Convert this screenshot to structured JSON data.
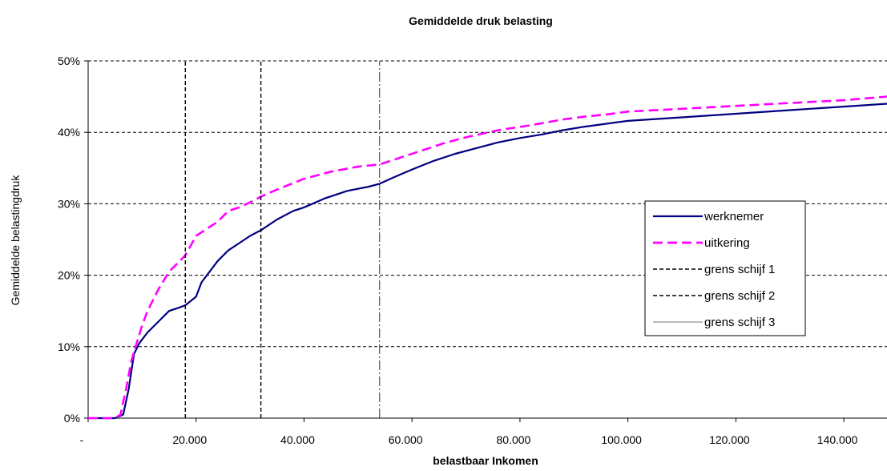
{
  "chart_data": {
    "type": "line",
    "title": "Gemiddelde druk belasting",
    "xlabel": "belastbaar Inkomen",
    "ylabel": "Gemiddelde belastingdruk",
    "xlim": [
      0,
      148000
    ],
    "ylim": [
      0,
      50
    ],
    "x_ticks": [
      {
        "value": 0,
        "label": "-"
      },
      {
        "value": 20000,
        "label": "20.000"
      },
      {
        "value": 40000,
        "label": "40.000"
      },
      {
        "value": 60000,
        "label": "60.000"
      },
      {
        "value": 80000,
        "label": "80.000"
      },
      {
        "value": 100000,
        "label": "100.000"
      },
      {
        "value": 120000,
        "label": "120.000"
      },
      {
        "value": 140000,
        "label": "140.000"
      }
    ],
    "y_ticks": [
      {
        "value": 0,
        "label": "0%"
      },
      {
        "value": 10,
        "label": "10%"
      },
      {
        "value": 20,
        "label": "20%"
      },
      {
        "value": 30,
        "label": "30%"
      },
      {
        "value": 40,
        "label": "40%"
      },
      {
        "value": 50,
        "label": "50%"
      }
    ],
    "grid": "horizontal dashed",
    "legend_position": "right",
    "series": [
      {
        "name": "werknemer",
        "color": "#000080",
        "style": "solid",
        "x": [
          0,
          5000,
          6500,
          7500,
          8500,
          9500,
          11000,
          13000,
          15000,
          17000,
          18000,
          20000,
          21000,
          22000,
          24000,
          26000,
          28000,
          30000,
          32000,
          35000,
          38000,
          40000,
          44000,
          48000,
          52000,
          54000,
          56000,
          60000,
          64000,
          68000,
          72000,
          76000,
          80000,
          84000,
          88000,
          92000,
          96000,
          100000,
          110000,
          120000,
          130000,
          140000,
          148000
        ],
        "y": [
          0,
          0,
          0.5,
          4,
          9,
          10.5,
          12,
          13.5,
          15,
          15.5,
          15.8,
          17,
          19,
          20,
          22,
          23.5,
          24.5,
          25.5,
          26.3,
          27.8,
          29,
          29.5,
          30.8,
          31.8,
          32.4,
          32.8,
          33.5,
          34.8,
          36,
          37,
          37.8,
          38.6,
          39.2,
          39.7,
          40.3,
          40.8,
          41.2,
          41.6,
          42.1,
          42.6,
          43.1,
          43.6,
          44
        ]
      },
      {
        "name": "uitkering",
        "color": "#ff00ff",
        "style": "dashed",
        "x": [
          0,
          5000,
          6000,
          7000,
          8000,
          9000,
          10000,
          11000,
          13000,
          15000,
          17000,
          18000,
          20000,
          22000,
          24000,
          26000,
          28000,
          30000,
          32000,
          35000,
          40000,
          45000,
          50000,
          54000,
          58000,
          62000,
          66000,
          70000,
          76000,
          82000,
          88000,
          92000,
          96000,
          100000,
          110000,
          120000,
          130000,
          140000,
          148000
        ],
        "y": [
          0,
          0,
          0.5,
          4,
          8,
          10.5,
          13,
          15,
          18,
          20.5,
          22,
          22.8,
          25.5,
          26.5,
          27.5,
          29,
          29.5,
          30.2,
          31,
          32,
          33.5,
          34.5,
          35.2,
          35.5,
          36.5,
          37.5,
          38.5,
          39.3,
          40.3,
          41,
          41.8,
          42.2,
          42.5,
          42.9,
          43.3,
          43.7,
          44.1,
          44.5,
          45
        ]
      },
      {
        "name": "grens schijf 1",
        "color": "#000000",
        "style": "dashed",
        "x": [
          18000,
          18000
        ],
        "y": [
          0,
          50
        ]
      },
      {
        "name": "grens schijf 2",
        "color": "#000000",
        "style": "dashed",
        "x": [
          32000,
          32000
        ],
        "y": [
          0,
          50
        ]
      },
      {
        "name": "grens schijf 3",
        "color": "#000000",
        "style": "thin-dashdot",
        "x": [
          54000,
          54000
        ],
        "y": [
          0,
          50
        ]
      }
    ]
  }
}
